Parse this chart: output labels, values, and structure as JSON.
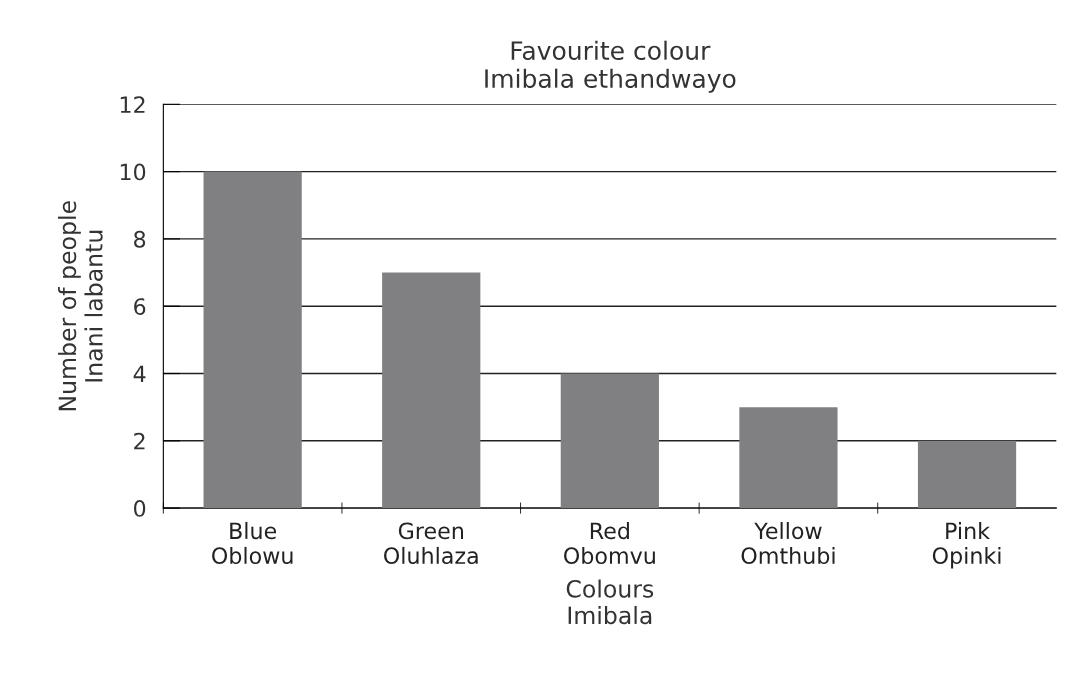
{
  "chart_data": {
    "type": "bar",
    "title": "Favourite colour\nImibala ethandwayo",
    "xlabel": "Colours\nImibala",
    "ylabel": "Number of people\nInani labantu",
    "categories": [
      "Blue\nOblowu",
      "Green\nOluhlaza",
      "Red\nObomvu",
      "Yellow\nOmthubi",
      "Pink\nOpinki"
    ],
    "values": [
      10,
      7,
      4,
      3,
      2
    ],
    "color": "#808083",
    "ylim": [
      0,
      12
    ],
    "yticks": [
      0,
      2,
      4,
      6,
      8,
      10,
      12
    ],
    "grid": "y"
  }
}
